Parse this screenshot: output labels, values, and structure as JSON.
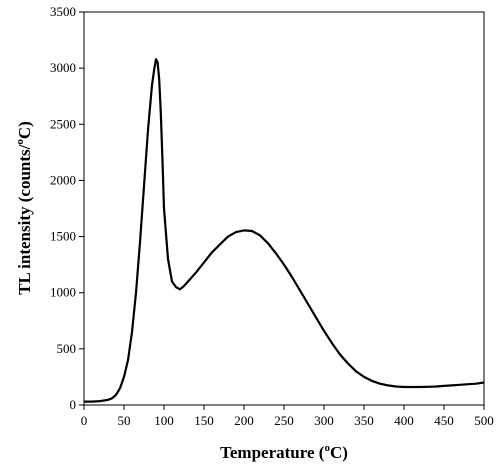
{
  "chart_data": {
    "type": "line",
    "title": "",
    "xlabel": {
      "prefix": "Temperature (",
      "sup": "o",
      "suffix": "C)"
    },
    "ylabel": {
      "prefix": "TL intensity (counts/",
      "sup": "o",
      "suffix": "C)"
    },
    "xlim": [
      0,
      500
    ],
    "ylim": [
      0,
      3500
    ],
    "xticks": [
      0,
      50,
      100,
      150,
      200,
      250,
      300,
      350,
      400,
      450,
      500
    ],
    "yticks": [
      0,
      500,
      1000,
      1500,
      2000,
      2500,
      3000,
      3500
    ],
    "grid": false,
    "legend": "none",
    "series": [
      {
        "color": "#000000",
        "x": [
          0,
          10,
          20,
          30,
          35,
          40,
          45,
          50,
          55,
          60,
          65,
          70,
          75,
          80,
          85,
          88,
          90,
          92,
          94,
          96,
          98,
          100,
          105,
          110,
          115,
          120,
          125,
          130,
          140,
          150,
          160,
          170,
          180,
          190,
          200,
          210,
          220,
          230,
          240,
          250,
          260,
          270,
          280,
          290,
          300,
          310,
          320,
          330,
          340,
          350,
          360,
          370,
          380,
          390,
          400,
          410,
          420,
          430,
          440,
          450,
          460,
          470,
          480,
          490,
          500
        ],
        "y": [
          30,
          30,
          35,
          45,
          60,
          90,
          150,
          250,
          400,
          650,
          1000,
          1450,
          1950,
          2450,
          2850,
          3000,
          3080,
          3050,
          2900,
          2600,
          2200,
          1750,
          1300,
          1100,
          1050,
          1030,
          1060,
          1100,
          1180,
          1270,
          1360,
          1430,
          1500,
          1540,
          1555,
          1550,
          1510,
          1440,
          1350,
          1250,
          1140,
          1020,
          900,
          780,
          660,
          550,
          450,
          370,
          300,
          250,
          215,
          190,
          175,
          165,
          160,
          160,
          160,
          162,
          165,
          170,
          175,
          180,
          185,
          190,
          200
        ]
      }
    ]
  }
}
